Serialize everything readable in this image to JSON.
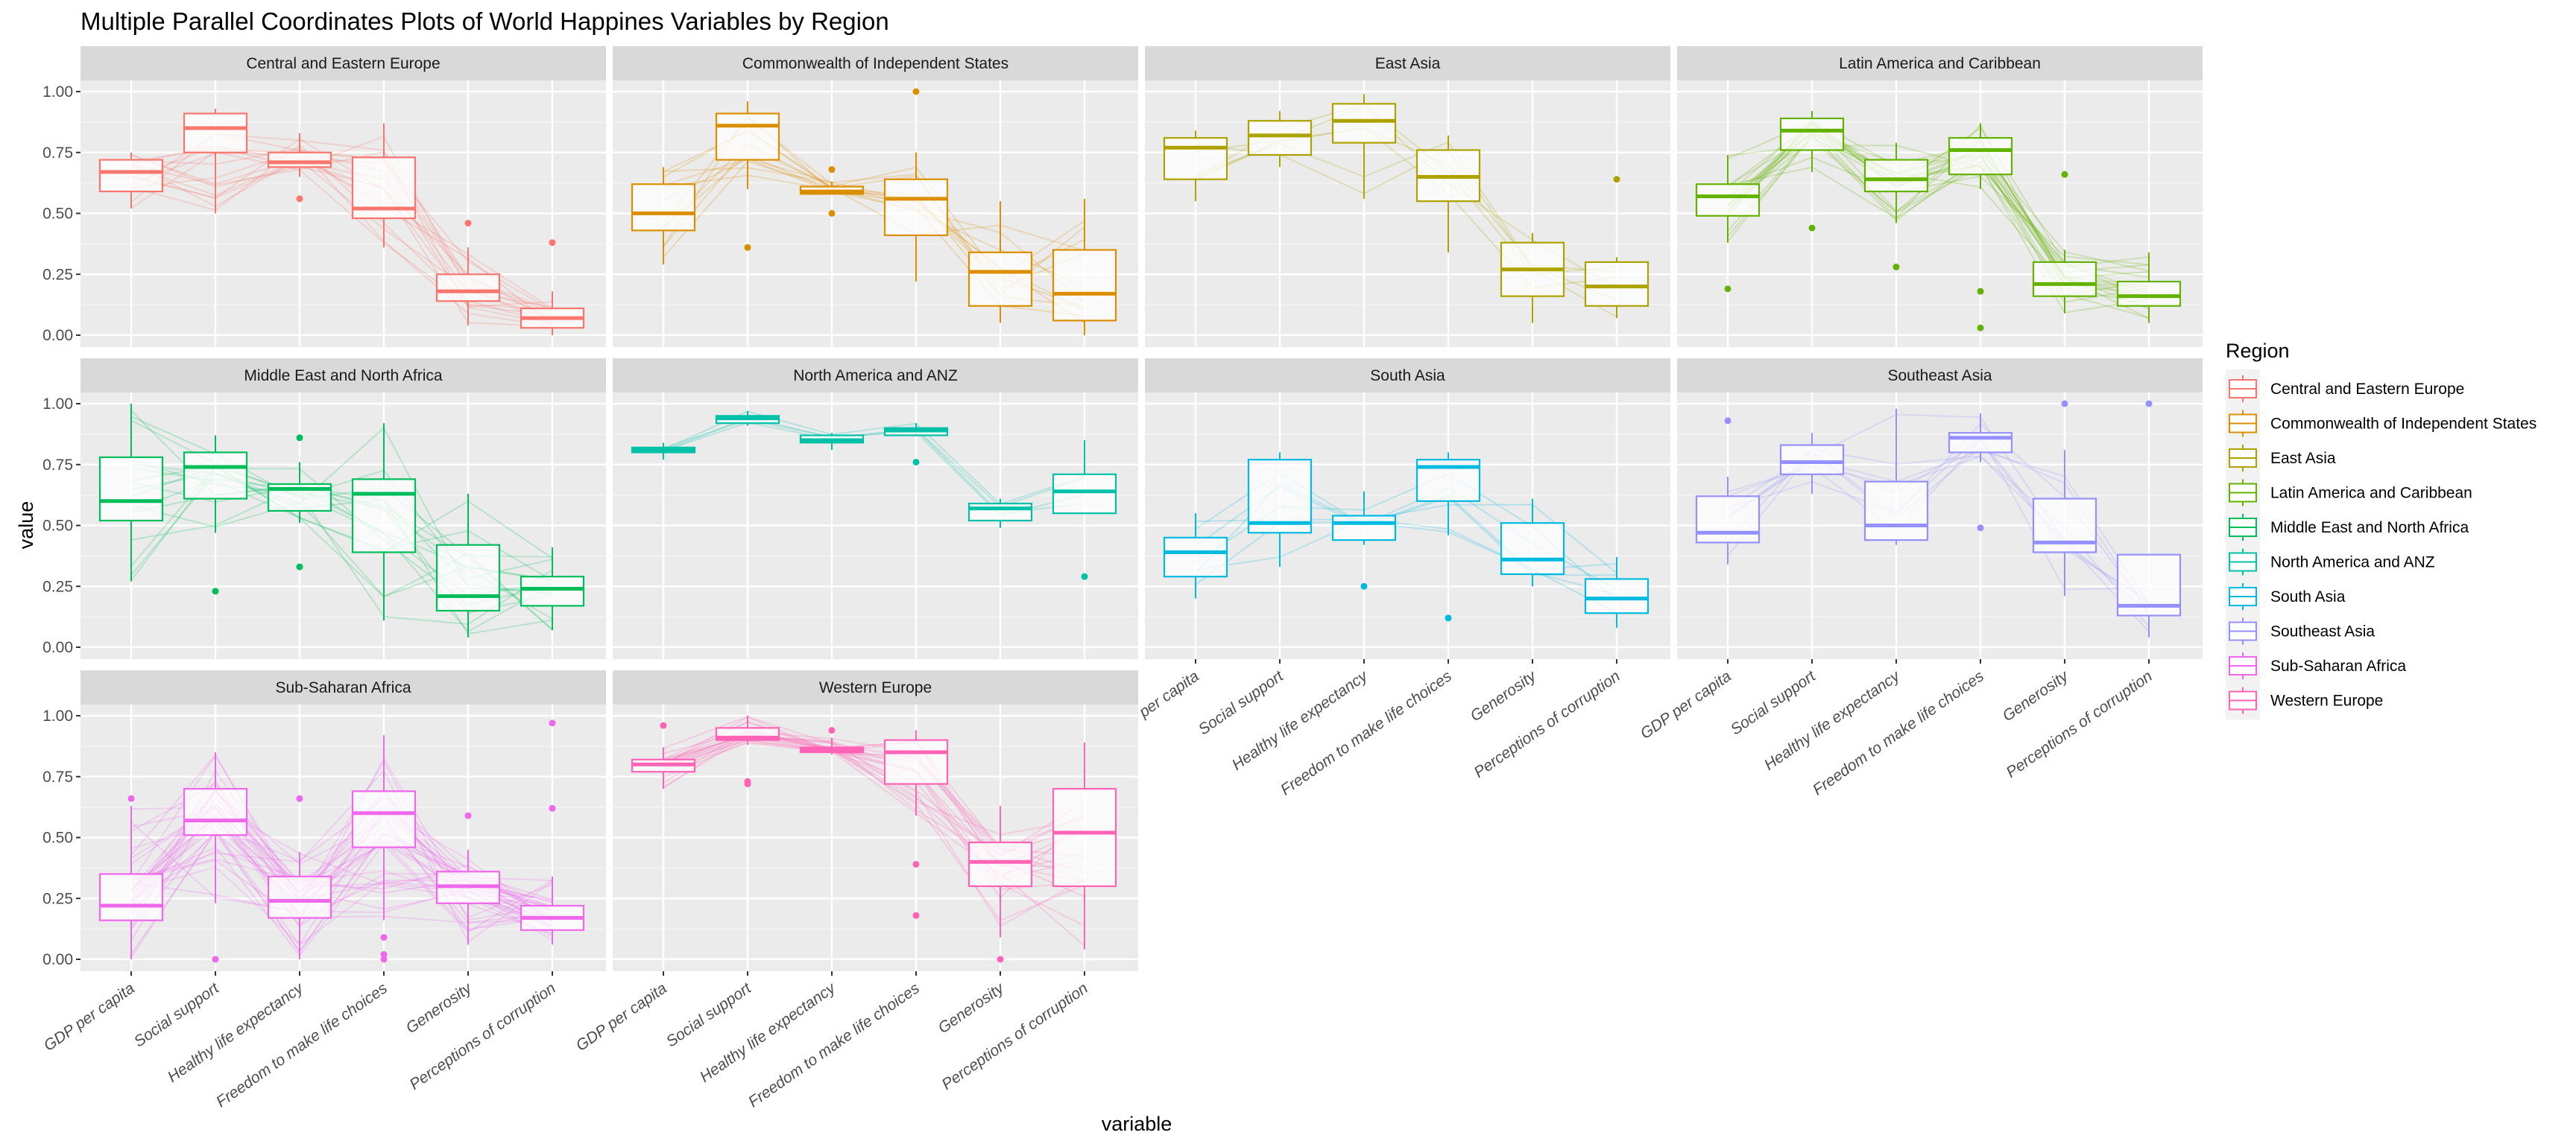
{
  "chart_data": {
    "type": "boxplot-parallel-coordinates",
    "title": "Multiple Parallel Coordinates Plots of World Happines Variables by Region",
    "xlabel": "variable",
    "ylabel": "value",
    "ylim": [
      0,
      1
    ],
    "yticks": [
      "0.00",
      "0.25",
      "0.50",
      "0.75",
      "1.00"
    ],
    "grid": true,
    "legend": {
      "title": "Region",
      "position": "right"
    },
    "variables": [
      "GDP per capita",
      "Social support",
      "Healthy life expectancy",
      "Freedom to make life choices",
      "Generosity",
      "Perceptions of corruption"
    ],
    "panels": [
      {
        "region": "Central and Eastern Europe",
        "color": "#F8766D",
        "n_lines": 17,
        "boxes": [
          {
            "min": 0.52,
            "q1": 0.59,
            "median": 0.67,
            "q3": 0.72,
            "max": 0.75,
            "outliers": []
          },
          {
            "min": 0.5,
            "q1": 0.75,
            "median": 0.85,
            "q3": 0.91,
            "max": 0.93,
            "outliers": []
          },
          {
            "min": 0.65,
            "q1": 0.69,
            "median": 0.71,
            "q3": 0.75,
            "max": 0.83,
            "outliers": [
              0.56
            ]
          },
          {
            "min": 0.36,
            "q1": 0.48,
            "median": 0.52,
            "q3": 0.73,
            "max": 0.87,
            "outliers": []
          },
          {
            "min": 0.04,
            "q1": 0.14,
            "median": 0.18,
            "q3": 0.25,
            "max": 0.36,
            "outliers": [
              0.46
            ]
          },
          {
            "min": 0.0,
            "q1": 0.03,
            "median": 0.07,
            "q3": 0.11,
            "max": 0.18,
            "outliers": [
              0.38
            ]
          }
        ]
      },
      {
        "region": "Commonwealth of Independent States",
        "color": "#DB8E00",
        "n_lines": 12,
        "boxes": [
          {
            "min": 0.29,
            "q1": 0.43,
            "median": 0.5,
            "q3": 0.62,
            "max": 0.69,
            "outliers": []
          },
          {
            "min": 0.6,
            "q1": 0.72,
            "median": 0.86,
            "q3": 0.91,
            "max": 0.96,
            "outliers": [
              0.36
            ]
          },
          {
            "min": 0.58,
            "q1": 0.58,
            "median": 0.59,
            "q3": 0.61,
            "max": 0.63,
            "outliers": [
              0.68,
              0.5
            ]
          },
          {
            "min": 0.22,
            "q1": 0.41,
            "median": 0.56,
            "q3": 0.64,
            "max": 0.75,
            "outliers": [
              1.0
            ]
          },
          {
            "min": 0.05,
            "q1": 0.12,
            "median": 0.26,
            "q3": 0.34,
            "max": 0.55,
            "outliers": []
          },
          {
            "min": 0.0,
            "q1": 0.06,
            "median": 0.17,
            "q3": 0.35,
            "max": 0.56,
            "outliers": []
          }
        ]
      },
      {
        "region": "East Asia",
        "color": "#AEA200",
        "n_lines": 6,
        "boxes": [
          {
            "min": 0.55,
            "q1": 0.64,
            "median": 0.77,
            "q3": 0.81,
            "max": 0.84,
            "outliers": []
          },
          {
            "min": 0.69,
            "q1": 0.74,
            "median": 0.82,
            "q3": 0.88,
            "max": 0.92,
            "outliers": []
          },
          {
            "min": 0.56,
            "q1": 0.79,
            "median": 0.88,
            "q3": 0.95,
            "max": 0.99,
            "outliers": []
          },
          {
            "min": 0.34,
            "q1": 0.55,
            "median": 0.65,
            "q3": 0.76,
            "max": 0.82,
            "outliers": []
          },
          {
            "min": 0.05,
            "q1": 0.16,
            "median": 0.27,
            "q3": 0.38,
            "max": 0.42,
            "outliers": []
          },
          {
            "min": 0.07,
            "q1": 0.12,
            "median": 0.2,
            "q3": 0.3,
            "max": 0.32,
            "outliers": [
              0.64
            ]
          }
        ]
      },
      {
        "region": "Latin America and Caribbean",
        "color": "#64B200",
        "n_lines": 21,
        "boxes": [
          {
            "min": 0.38,
            "q1": 0.49,
            "median": 0.57,
            "q3": 0.62,
            "max": 0.74,
            "outliers": [
              0.19
            ]
          },
          {
            "min": 0.67,
            "q1": 0.76,
            "median": 0.84,
            "q3": 0.89,
            "max": 0.92,
            "outliers": [
              0.44
            ]
          },
          {
            "min": 0.46,
            "q1": 0.59,
            "median": 0.64,
            "q3": 0.72,
            "max": 0.79,
            "outliers": [
              0.28
            ]
          },
          {
            "min": 0.6,
            "q1": 0.66,
            "median": 0.76,
            "q3": 0.81,
            "max": 0.87,
            "outliers": [
              0.18,
              0.03
            ]
          },
          {
            "min": 0.09,
            "q1": 0.16,
            "median": 0.21,
            "q3": 0.3,
            "max": 0.35,
            "outliers": [
              0.66
            ]
          },
          {
            "min": 0.05,
            "q1": 0.12,
            "median": 0.16,
            "q3": 0.22,
            "max": 0.34,
            "outliers": []
          }
        ]
      },
      {
        "region": "Middle East and North Africa",
        "color": "#00BD5C",
        "n_lines": 17,
        "boxes": [
          {
            "min": 0.27,
            "q1": 0.52,
            "median": 0.6,
            "q3": 0.78,
            "max": 1.0,
            "outliers": []
          },
          {
            "min": 0.47,
            "q1": 0.61,
            "median": 0.74,
            "q3": 0.8,
            "max": 0.87,
            "outliers": [
              0.23
            ]
          },
          {
            "min": 0.51,
            "q1": 0.56,
            "median": 0.65,
            "q3": 0.67,
            "max": 0.76,
            "outliers": [
              0.86,
              0.33
            ]
          },
          {
            "min": 0.11,
            "q1": 0.39,
            "median": 0.63,
            "q3": 0.69,
            "max": 0.92,
            "outliers": []
          },
          {
            "min": 0.04,
            "q1": 0.15,
            "median": 0.21,
            "q3": 0.42,
            "max": 0.63,
            "outliers": []
          },
          {
            "min": 0.07,
            "q1": 0.17,
            "median": 0.24,
            "q3": 0.29,
            "max": 0.41,
            "outliers": []
          }
        ]
      },
      {
        "region": "North America and ANZ",
        "color": "#00C1A7",
        "n_lines": 4,
        "boxes": [
          {
            "min": 0.77,
            "q1": 0.8,
            "median": 0.81,
            "q3": 0.82,
            "max": 0.84,
            "outliers": []
          },
          {
            "min": 0.91,
            "q1": 0.92,
            "median": 0.94,
            "q3": 0.95,
            "max": 0.97,
            "outliers": []
          },
          {
            "min": 0.81,
            "q1": 0.84,
            "median": 0.85,
            "q3": 0.87,
            "max": 0.88,
            "outliers": []
          },
          {
            "min": 0.88,
            "q1": 0.87,
            "median": 0.89,
            "q3": 0.9,
            "max": 0.92,
            "outliers": [
              0.76
            ]
          },
          {
            "min": 0.49,
            "q1": 0.52,
            "median": 0.57,
            "q3": 0.59,
            "max": 0.61,
            "outliers": []
          },
          {
            "min": 0.55,
            "q1": 0.55,
            "median": 0.64,
            "q3": 0.71,
            "max": 0.85,
            "outliers": [
              0.29
            ]
          }
        ]
      },
      {
        "region": "South Asia",
        "color": "#00BAE0",
        "n_lines": 7,
        "boxes": [
          {
            "min": 0.2,
            "q1": 0.29,
            "median": 0.39,
            "q3": 0.45,
            "max": 0.55,
            "outliers": []
          },
          {
            "min": 0.33,
            "q1": 0.47,
            "median": 0.51,
            "q3": 0.77,
            "max": 0.8,
            "outliers": []
          },
          {
            "min": 0.42,
            "q1": 0.44,
            "median": 0.51,
            "q3": 0.54,
            "max": 0.64,
            "outliers": [
              0.25
            ]
          },
          {
            "min": 0.46,
            "q1": 0.6,
            "median": 0.74,
            "q3": 0.77,
            "max": 0.8,
            "outliers": [
              0.12
            ]
          },
          {
            "min": 0.25,
            "q1": 0.3,
            "median": 0.36,
            "q3": 0.51,
            "max": 0.61,
            "outliers": []
          },
          {
            "min": 0.08,
            "q1": 0.14,
            "median": 0.2,
            "q3": 0.28,
            "max": 0.37,
            "outliers": []
          }
        ]
      },
      {
        "region": "Southeast Asia",
        "color": "#9590FF",
        "n_lines": 9,
        "boxes": [
          {
            "min": 0.34,
            "q1": 0.43,
            "median": 0.47,
            "q3": 0.62,
            "max": 0.7,
            "outliers": [
              0.93
            ]
          },
          {
            "min": 0.63,
            "q1": 0.71,
            "median": 0.76,
            "q3": 0.83,
            "max": 0.88,
            "outliers": []
          },
          {
            "min": 0.42,
            "q1": 0.44,
            "median": 0.5,
            "q3": 0.68,
            "max": 0.98,
            "outliers": []
          },
          {
            "min": 0.76,
            "q1": 0.8,
            "median": 0.86,
            "q3": 0.88,
            "max": 0.96,
            "outliers": [
              0.49
            ]
          },
          {
            "min": 0.21,
            "q1": 0.39,
            "median": 0.43,
            "q3": 0.61,
            "max": 0.81,
            "outliers": [
              1.0
            ]
          },
          {
            "min": 0.04,
            "q1": 0.13,
            "median": 0.17,
            "q3": 0.38,
            "max": 0.38,
            "outliers": [
              1.0
            ]
          }
        ]
      },
      {
        "region": "Sub-Saharan Africa",
        "color": "#EF67EB",
        "n_lines": 36,
        "boxes": [
          {
            "min": 0.0,
            "q1": 0.16,
            "median": 0.22,
            "q3": 0.35,
            "max": 0.63,
            "outliers": [
              0.66
            ]
          },
          {
            "min": 0.23,
            "q1": 0.51,
            "median": 0.57,
            "q3": 0.7,
            "max": 0.85,
            "outliers": [
              0.0
            ]
          },
          {
            "min": 0.0,
            "q1": 0.17,
            "median": 0.24,
            "q3": 0.34,
            "max": 0.44,
            "outliers": [
              0.66
            ]
          },
          {
            "min": 0.16,
            "q1": 0.46,
            "median": 0.6,
            "q3": 0.69,
            "max": 0.92,
            "outliers": [
              0.09,
              0.02,
              0.0
            ]
          },
          {
            "min": 0.06,
            "q1": 0.23,
            "median": 0.3,
            "q3": 0.36,
            "max": 0.45,
            "outliers": [
              0.59
            ]
          },
          {
            "min": 0.06,
            "q1": 0.12,
            "median": 0.17,
            "q3": 0.22,
            "max": 0.34,
            "outliers": [
              0.97,
              0.62
            ]
          }
        ]
      },
      {
        "region": "Western Europe",
        "color": "#FF63B6",
        "n_lines": 21,
        "boxes": [
          {
            "min": 0.7,
            "q1": 0.77,
            "median": 0.8,
            "q3": 0.82,
            "max": 0.87,
            "outliers": [
              0.96
            ]
          },
          {
            "min": 0.88,
            "q1": 0.9,
            "median": 0.91,
            "q3": 0.95,
            "max": 1.0,
            "outliers": [
              0.73,
              0.72
            ]
          },
          {
            "min": 0.84,
            "q1": 0.85,
            "median": 0.86,
            "q3": 0.87,
            "max": 0.91,
            "outliers": [
              0.94
            ]
          },
          {
            "min": 0.59,
            "q1": 0.72,
            "median": 0.85,
            "q3": 0.9,
            "max": 0.94,
            "outliers": [
              0.39,
              0.18
            ]
          },
          {
            "min": 0.09,
            "q1": 0.3,
            "median": 0.4,
            "q3": 0.48,
            "max": 0.63,
            "outliers": [
              0.0
            ]
          },
          {
            "min": 0.04,
            "q1": 0.3,
            "median": 0.52,
            "q3": 0.7,
            "max": 0.89,
            "outliers": []
          }
        ]
      }
    ]
  }
}
